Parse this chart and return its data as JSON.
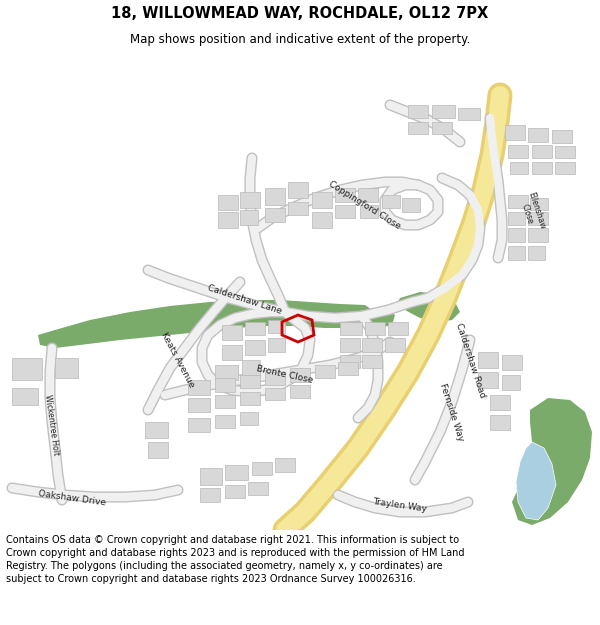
{
  "title": "18, WILLOWMEAD WAY, ROCHDALE, OL12 7PX",
  "subtitle": "Map shows position and indicative extent of the property.",
  "footer": "Contains OS data © Crown copyright and database right 2021. This information is subject to Crown copyright and database rights 2023 and is reproduced with the permission of HM Land Registry. The polygons (including the associated geometry, namely x, y co-ordinates) are subject to Crown copyright and database rights 2023 Ordnance Survey 100026316.",
  "map_bg": "#f7f7f7",
  "green_color": "#7aab6a",
  "blue_color": "#aacfe0",
  "building_color": "#d8d8d8",
  "building_stroke": "#b8b8b8",
  "road_yellow_outer": "#e8d070",
  "road_yellow_inner": "#f5e898",
  "road_white_outer": "#c0c0c0",
  "road_white_inner": "#f0f0f0",
  "red_outline": "#cc0000",
  "title_fontsize": 10.5,
  "subtitle_fontsize": 8.5,
  "footer_fontsize": 7.0,
  "label_fontsize": 6.0
}
